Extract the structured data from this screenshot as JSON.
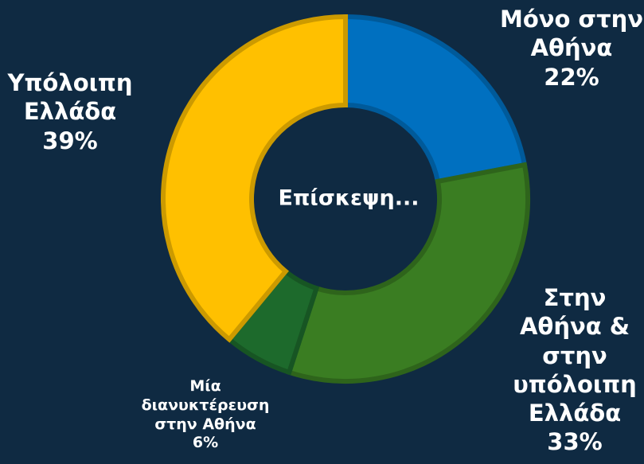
{
  "chart_data": {
    "type": "donut",
    "center_label": "Επίσκεψη...",
    "categories": [
      "Μόνο στην Αθήνα",
      "Στην Αθήνα & στην υπόλοιπη Ελλάδα",
      "Μία διανυκτέρευση στην Αθήνα",
      "Υπόλοιπη Ελλάδα"
    ],
    "values": [
      22,
      33,
      6,
      39
    ],
    "value_labels": [
      "22%",
      "33%",
      "6%",
      "39%"
    ],
    "colors": [
      "#0070c0",
      "#3a7d22",
      "#1d6a2c",
      "#ffc000"
    ]
  }
}
